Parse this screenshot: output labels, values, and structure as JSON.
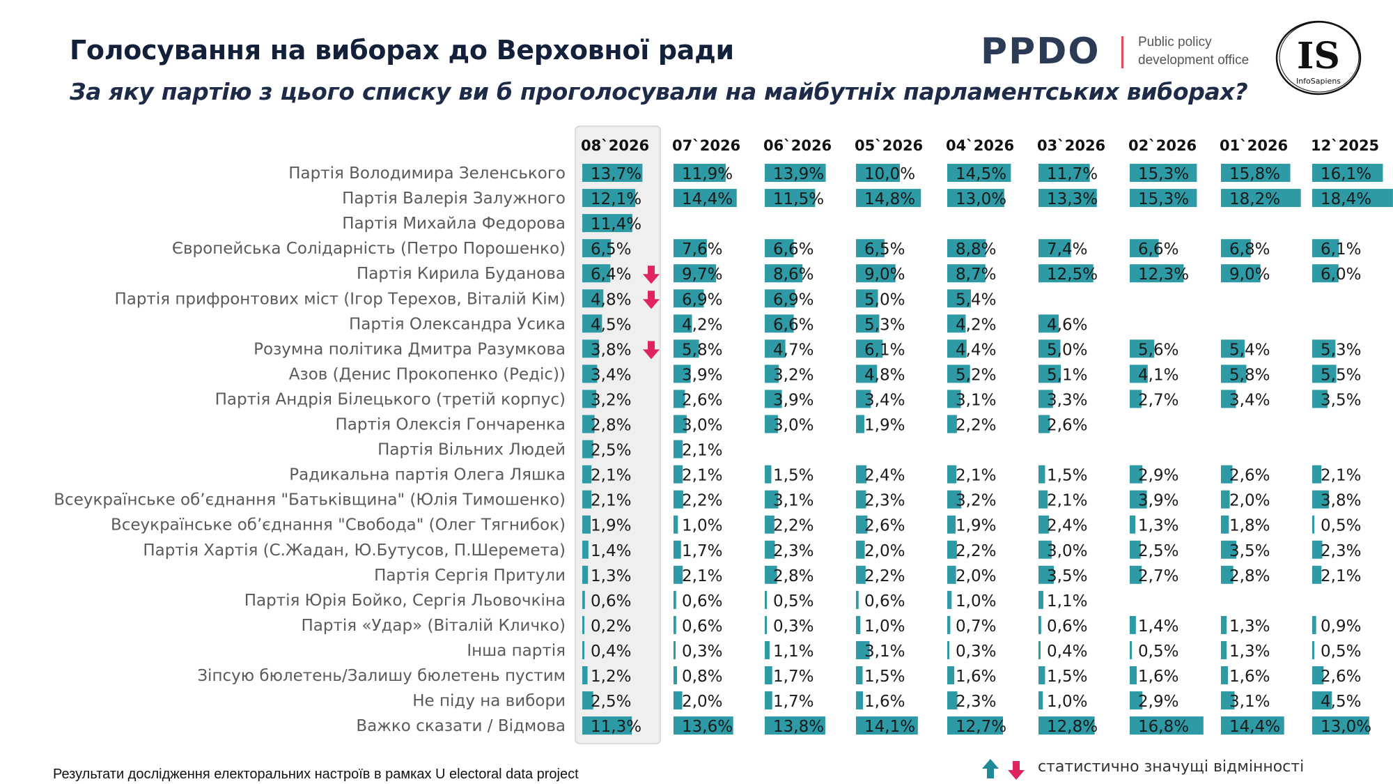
{
  "header": {
    "title": "Голосування на виборах до Верховної ради",
    "subtitle": "За яку партію з цього списку ви б проголосували на майбутніх парламентських виборах?"
  },
  "logos": {
    "ppdo_text": "PPDO",
    "ppdo_line1": "Public policy",
    "ppdo_line2": "development office",
    "is_text": "IS",
    "is_sub": "InfoSapiens"
  },
  "footnote": "Результати дослідження електоральних настроїв в рамках U electoral data project",
  "legend": {
    "text": "статистично значущі відмінності",
    "icons": [
      "arrow-up-icon",
      "arrow-down-icon"
    ]
  },
  "colors": {
    "bar": "#2e9aa6",
    "arrow_up": "#1f8a97",
    "arrow_down": "#e0245e",
    "highlight_bg": "#efefef"
  },
  "chart_data": {
    "type": "table",
    "columns": [
      "08`2026",
      "07`2026",
      "06`2026",
      "05`2026",
      "04`2026",
      "03`2026",
      "02`2026",
      "01`2026",
      "12`2025"
    ],
    "highlight_column": "08`2026",
    "rows": [
      {
        "label": "Партія Володимира Зеленського",
        "values": [
          13.7,
          11.9,
          13.9,
          10.0,
          14.5,
          11.7,
          15.3,
          15.8,
          16.1
        ],
        "display": [
          "13,7%",
          "11,9%",
          "13,9%",
          "10,0%",
          "14,5%",
          "11,7%",
          "15,3%",
          "15,8%",
          "16,1%"
        ],
        "change": ""
      },
      {
        "label": "Партія Валерія Залужного",
        "values": [
          12.1,
          14.4,
          11.5,
          14.8,
          13.0,
          13.3,
          15.3,
          18.2,
          18.4
        ],
        "display": [
          "12,1%",
          "14,4%",
          "11,5%",
          "14,8%",
          "13,0%",
          "13,3%",
          "15,3%",
          "18,2%",
          "18,4%"
        ],
        "change": ""
      },
      {
        "label": "Партія Михайла Федорова",
        "values": [
          11.4,
          null,
          null,
          null,
          null,
          null,
          null,
          null,
          null
        ],
        "display": [
          "11,4%",
          "",
          "",
          "",
          "",
          "",
          "",
          "",
          ""
        ],
        "change": ""
      },
      {
        "label": "Європейська Солідарність (Петро Порошенко)",
        "values": [
          6.5,
          7.6,
          6.6,
          6.5,
          8.8,
          7.4,
          6.6,
          6.8,
          6.1
        ],
        "display": [
          "6,5%",
          "7,6%",
          "6,6%",
          "6,5%",
          "8,8%",
          "7,4%",
          "6,6%",
          "6,8%",
          "6,1%"
        ],
        "change": ""
      },
      {
        "label": "Партія Кирила Буданова",
        "values": [
          6.4,
          9.7,
          8.6,
          9.0,
          8.7,
          12.5,
          12.3,
          9.0,
          6.0
        ],
        "display": [
          "6,4%",
          "9,7%",
          "8,6%",
          "9,0%",
          "8,7%",
          "12,5%",
          "12,3%",
          "9,0%",
          "6,0%"
        ],
        "change": "down"
      },
      {
        "label": "Партія прифронтових міст (Ігор Терехов, Віталій Кім)",
        "values": [
          4.8,
          6.9,
          6.9,
          5.0,
          5.4,
          null,
          null,
          null,
          null
        ],
        "display": [
          "4,8%",
          "6,9%",
          "6,9%",
          "5,0%",
          "5,4%",
          "",
          "",
          "",
          ""
        ],
        "change": "down"
      },
      {
        "label": "Партія Олександра Усика",
        "values": [
          4.5,
          4.2,
          6.6,
          5.3,
          4.2,
          4.6,
          null,
          null,
          null
        ],
        "display": [
          "4,5%",
          "4,2%",
          "6,6%",
          "5,3%",
          "4,2%",
          "4,6%",
          "",
          "",
          ""
        ],
        "change": ""
      },
      {
        "label": "Розумна політика Дмитра Разумкова",
        "values": [
          3.8,
          5.8,
          4.7,
          6.1,
          4.4,
          5.0,
          5.6,
          5.4,
          5.3
        ],
        "display": [
          "3,8%",
          "5,8%",
          "4,7%",
          "6,1%",
          "4,4%",
          "5,0%",
          "5,6%",
          "5,4%",
          "5,3%"
        ],
        "change": "down"
      },
      {
        "label": "Азов (Денис Прокопенко (Редіс))",
        "values": [
          3.4,
          3.9,
          3.2,
          4.8,
          5.2,
          5.1,
          4.1,
          5.8,
          5.5
        ],
        "display": [
          "3,4%",
          "3,9%",
          "3,2%",
          "4,8%",
          "5,2%",
          "5,1%",
          "4,1%",
          "5,8%",
          "5,5%"
        ],
        "change": ""
      },
      {
        "label": "Партія Андрія Білецького (третій корпус)",
        "values": [
          3.2,
          2.6,
          3.9,
          3.4,
          3.1,
          3.3,
          2.7,
          3.4,
          3.5
        ],
        "display": [
          "3,2%",
          "2,6%",
          "3,9%",
          "3,4%",
          "3,1%",
          "3,3%",
          "2,7%",
          "3,4%",
          "3,5%"
        ],
        "change": ""
      },
      {
        "label": "Партія Олексія Гончаренка",
        "values": [
          2.8,
          3.0,
          3.0,
          1.9,
          2.2,
          2.6,
          null,
          null,
          null
        ],
        "display": [
          "2,8%",
          "3,0%",
          "3,0%",
          "1,9%",
          "2,2%",
          "2,6%",
          "",
          "",
          ""
        ],
        "change": ""
      },
      {
        "label": "Партія Вільних Людей",
        "values": [
          2.5,
          2.1,
          null,
          null,
          null,
          null,
          null,
          null,
          null
        ],
        "display": [
          "2,5%",
          "2,1%",
          "",
          "",
          "",
          "",
          "",
          "",
          ""
        ],
        "change": ""
      },
      {
        "label": "Радикальна партія Олега Ляшка",
        "values": [
          2.1,
          2.1,
          1.5,
          2.4,
          2.1,
          1.5,
          2.9,
          2.6,
          2.1
        ],
        "display": [
          "2,1%",
          "2,1%",
          "1,5%",
          "2,4%",
          "2,1%",
          "1,5%",
          "2,9%",
          "2,6%",
          "2,1%"
        ],
        "change": ""
      },
      {
        "label": "Всеукраїнське об’єднання \"Батьківщина\" (Юлія Тимошенко)",
        "values": [
          2.1,
          2.2,
          3.1,
          2.3,
          3.2,
          2.1,
          3.9,
          2.0,
          3.8
        ],
        "display": [
          "2,1%",
          "2,2%",
          "3,1%",
          "2,3%",
          "3,2%",
          "2,1%",
          "3,9%",
          "2,0%",
          "3,8%"
        ],
        "change": ""
      },
      {
        "label": "Всеукраїнське об’єднання \"Свобода\" (Олег Тягнибок)",
        "values": [
          1.9,
          1.0,
          2.2,
          2.6,
          1.9,
          2.4,
          1.3,
          1.8,
          0.5
        ],
        "display": [
          "1,9%",
          "1,0%",
          "2,2%",
          "2,6%",
          "1,9%",
          "2,4%",
          "1,3%",
          "1,8%",
          "0,5%"
        ],
        "change": ""
      },
      {
        "label": "Партія Хартія (С.Жадан, Ю.Бутусов, П.Шеремета)",
        "values": [
          1.4,
          1.7,
          2.3,
          2.0,
          2.2,
          3.0,
          2.5,
          3.5,
          2.3
        ],
        "display": [
          "1,4%",
          "1,7%",
          "2,3%",
          "2,0%",
          "2,2%",
          "3,0%",
          "2,5%",
          "3,5%",
          "2,3%"
        ],
        "change": ""
      },
      {
        "label": "Партія Сергія Притули",
        "values": [
          1.3,
          2.1,
          2.8,
          2.2,
          2.0,
          3.5,
          2.7,
          2.8,
          2.1
        ],
        "display": [
          "1,3%",
          "2,1%",
          "2,8%",
          "2,2%",
          "2,0%",
          "3,5%",
          "2,7%",
          "2,8%",
          "2,1%"
        ],
        "change": ""
      },
      {
        "label": "Партія Юрія Бойко, Сергія Льовочкіна",
        "values": [
          0.6,
          0.6,
          0.5,
          0.6,
          1.0,
          1.1,
          null,
          null,
          null
        ],
        "display": [
          "0,6%",
          "0,6%",
          "0,5%",
          "0,6%",
          "1,0%",
          "1,1%",
          "",
          "",
          ""
        ],
        "change": ""
      },
      {
        "label": "Партія «Удар» (Віталій Кличко)",
        "values": [
          0.2,
          0.6,
          0.3,
          1.0,
          0.7,
          0.6,
          1.4,
          1.3,
          0.9
        ],
        "display": [
          "0,2%",
          "0,6%",
          "0,3%",
          "1,0%",
          "0,7%",
          "0,6%",
          "1,4%",
          "1,3%",
          "0,9%"
        ],
        "change": ""
      },
      {
        "label": "Інша партія",
        "values": [
          0.4,
          0.3,
          1.1,
          3.1,
          0.3,
          0.4,
          0.5,
          1.3,
          0.5
        ],
        "display": [
          "0,4%",
          "0,3%",
          "1,1%",
          "3,1%",
          "0,3%",
          "0,4%",
          "0,5%",
          "1,3%",
          "0,5%"
        ],
        "change": ""
      },
      {
        "label": "Зіпсую бюлетень/Залишу бюлетень пустим",
        "values": [
          1.2,
          0.8,
          1.7,
          1.5,
          1.6,
          1.5,
          1.6,
          1.6,
          2.6
        ],
        "display": [
          "1,2%",
          "0,8%",
          "1,7%",
          "1,5%",
          "1,6%",
          "1,5%",
          "1,6%",
          "1,6%",
          "2,6%"
        ],
        "change": ""
      },
      {
        "label": "Не піду на вибори",
        "values": [
          2.5,
          2.0,
          1.7,
          1.6,
          2.3,
          1.0,
          2.9,
          3.1,
          4.5
        ],
        "display": [
          "2,5%",
          "2,0%",
          "1,7%",
          "1,6%",
          "2,3%",
          "1,0%",
          "2,9%",
          "3,1%",
          "4,5%"
        ],
        "change": ""
      },
      {
        "label": "Важко сказати / Відмова",
        "values": [
          11.3,
          13.6,
          13.8,
          14.1,
          12.7,
          12.8,
          16.8,
          14.4,
          13.0
        ],
        "display": [
          "11,3%",
          "13,6%",
          "13,8%",
          "14,1%",
          "12,7%",
          "12,8%",
          "16,8%",
          "14,4%",
          "13,0%"
        ],
        "change": ""
      }
    ]
  }
}
